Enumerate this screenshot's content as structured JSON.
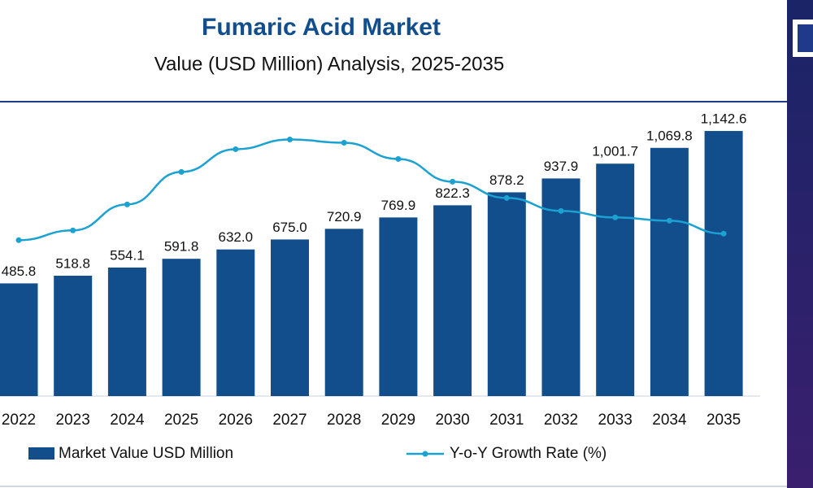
{
  "chart_data": {
    "type": "bar_line",
    "title": "Fumaric Acid Market",
    "subtitle": "Value (USD Million) Analysis, 2025-2035",
    "categories": [
      "2022",
      "2023",
      "2024",
      "2025",
      "2026",
      "2027",
      "2028",
      "2029",
      "2030",
      "2031",
      "2032",
      "2033",
      "2034",
      "2035"
    ],
    "series": [
      {
        "name": "Market Value USD Million",
        "color": "#124e8c",
        "type": "bar",
        "values": [
          485.8,
          518.8,
          554.1,
          591.8,
          632.0,
          675.0,
          720.9,
          769.9,
          822.3,
          878.2,
          937.9,
          1001.7,
          1069.8,
          1142.6
        ],
        "value_labels": [
          "485.8",
          "518.8",
          "554.1",
          "591.8",
          "632.0",
          "675.0",
          "720.9",
          "769.9",
          "822.3",
          "878.2",
          "937.9",
          "1,001.7",
          "1,069.8",
          "1,142.6"
        ]
      },
      {
        "name": "Y-o-Y Growth Rate (%)",
        "color": "#1ba1d2",
        "type": "line",
        "axis": "y2",
        "values": [
          4.8,
          5.1,
          5.9,
          6.9,
          7.6,
          7.9,
          7.8,
          7.3,
          6.6,
          6.1,
          5.7,
          5.5,
          5.4,
          5.0
        ]
      }
    ],
    "ylim": [
      0,
      1400
    ],
    "y2lim": [
      0,
      10
    ],
    "grid": false
  }
}
